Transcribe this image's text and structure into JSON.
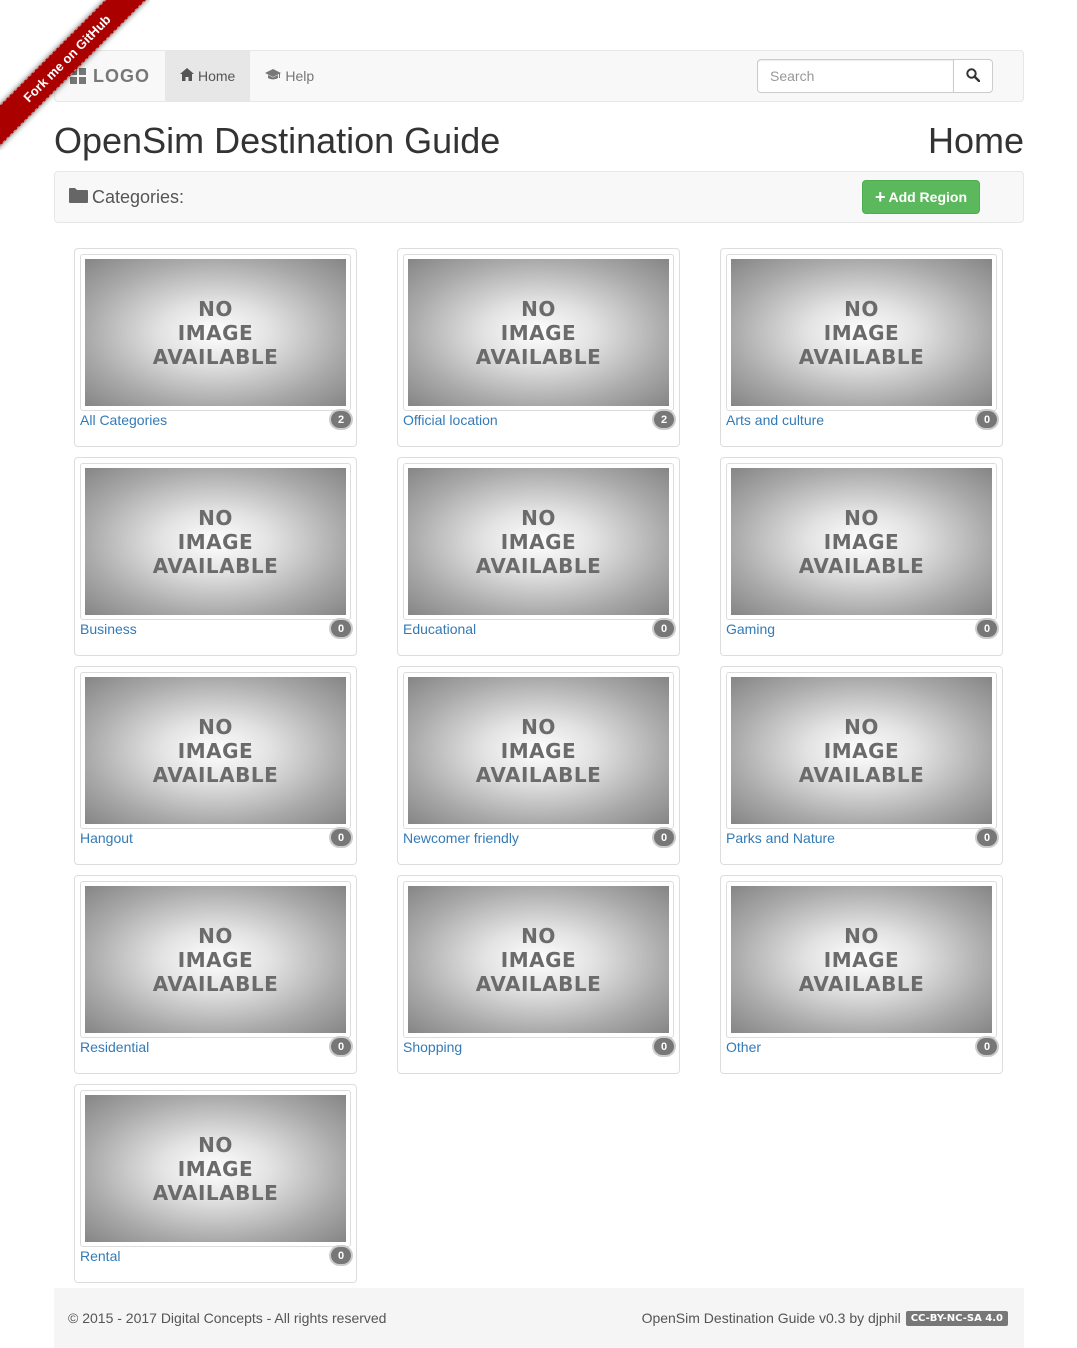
{
  "ribbon": {
    "text": "Fork me on GitHub"
  },
  "navbar": {
    "brand": "LOGO",
    "items": [
      {
        "label": "Home",
        "icon": "home-icon",
        "active": true
      },
      {
        "label": "Help",
        "icon": "graduation-cap-icon",
        "active": false
      }
    ],
    "search_placeholder": "Search"
  },
  "page": {
    "title": "OpenSim Destination Guide",
    "subtitle": "Home"
  },
  "categories_bar": {
    "label": "Categories:",
    "add_button": "Add Region"
  },
  "thumbnail_placeholder": [
    "NO",
    "IMAGE",
    "AVAILABLE"
  ],
  "categories": [
    {
      "name": "All Categories",
      "count": "2"
    },
    {
      "name": "Official location",
      "count": "2"
    },
    {
      "name": "Arts and culture",
      "count": "0"
    },
    {
      "name": "Business",
      "count": "0"
    },
    {
      "name": "Educational",
      "count": "0"
    },
    {
      "name": "Gaming",
      "count": "0"
    },
    {
      "name": "Hangout",
      "count": "0"
    },
    {
      "name": "Newcomer friendly",
      "count": "0"
    },
    {
      "name": "Parks and Nature",
      "count": "0"
    },
    {
      "name": "Residential",
      "count": "0"
    },
    {
      "name": "Shopping",
      "count": "0"
    },
    {
      "name": "Other",
      "count": "0"
    },
    {
      "name": "Rental",
      "count": "0"
    }
  ],
  "footer": {
    "copyright": "© 2015 - 2017 Digital Concepts - All rights reserved",
    "credit": "OpenSim Destination Guide v0.3 by djphil",
    "license": "CC-BY-NC-SA 4.0"
  }
}
